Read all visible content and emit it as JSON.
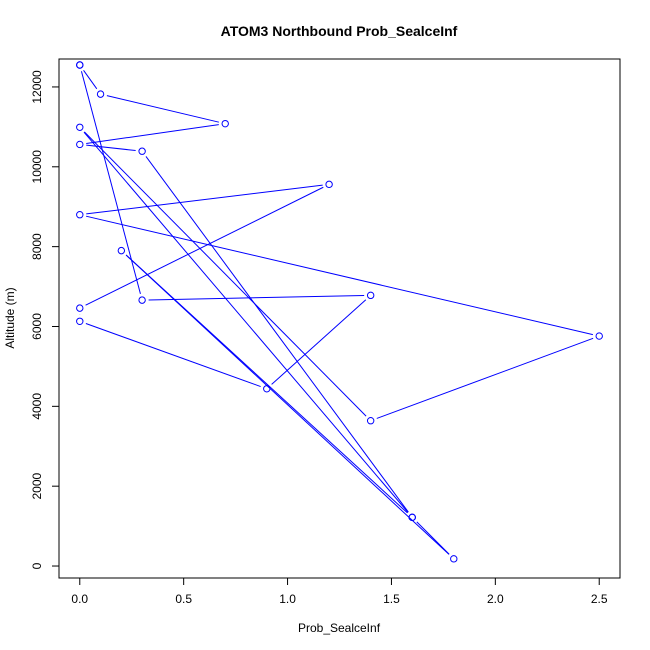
{
  "chart_data": {
    "type": "line",
    "title": "ATOM3 Northbound Prob_SealceInf",
    "xlabel": "Prob_SealceInf",
    "ylabel": "Altitude (m)",
    "xlim": [
      -0.1,
      2.6
    ],
    "ylim": [
      -300,
      12700
    ],
    "x_ticks": [
      0,
      0.5,
      1,
      1.5,
      2,
      2.5
    ],
    "x_tick_labels": [
      "0.0",
      "0.5",
      "1.0",
      "1.5",
      "2.0",
      "2.5"
    ],
    "y_ticks": [
      0,
      2000,
      4000,
      6000,
      8000,
      10000,
      12000
    ],
    "y_tick_labels": [
      "0",
      "2000",
      "4000",
      "6000",
      "8000",
      "10000",
      "12000"
    ],
    "grid": false,
    "color": "#0000ff",
    "series": [
      {
        "name": "Prob_SealceInf",
        "x": [
          0.0,
          0.1,
          0.7,
          0.0,
          0.3,
          1.6,
          1.8,
          0.2,
          1.6,
          0.0,
          1.4,
          2.5,
          0.0,
          1.2,
          0.0,
          0.0,
          0.9,
          1.4,
          0.3,
          0.0
        ],
        "y": [
          12550,
          11820,
          11080,
          10560,
          10390,
          1220,
          180,
          7900,
          1220,
          10990,
          3640,
          5760,
          8800,
          9560,
          6460,
          6130,
          4440,
          6780,
          6660,
          12550
        ]
      }
    ]
  }
}
